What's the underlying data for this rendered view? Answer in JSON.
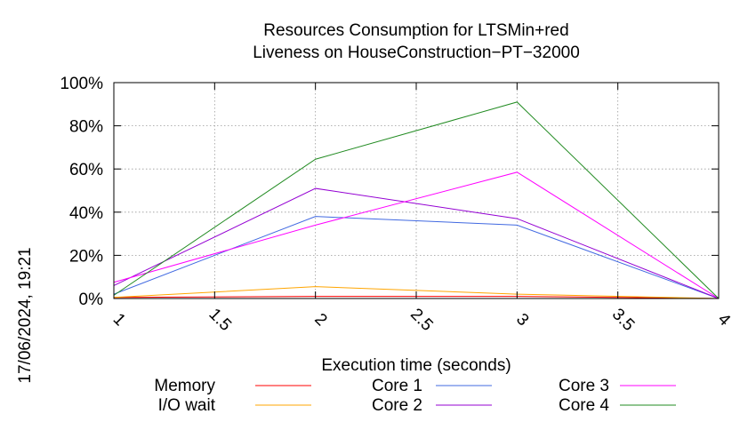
{
  "chart_data": {
    "type": "line",
    "title": [
      "Resources Consumption for LTSMin+red",
      "Liveness on HouseConstruction−PT−32000"
    ],
    "xlabel": "Execution time (seconds)",
    "ylabel": "",
    "x": [
      1,
      2,
      3,
      4
    ],
    "xlim": [
      1,
      4
    ],
    "ylim": [
      0,
      100
    ],
    "x_ticks": [
      "1",
      "1.5",
      "2",
      "2.5",
      "3",
      "3.5",
      "4"
    ],
    "y_ticks": [
      "0%",
      "20%",
      "40%",
      "60%",
      "80%",
      "100%"
    ],
    "grid": true,
    "legend_position": "bottom",
    "series": [
      {
        "name": "Memory",
        "color": "#ff0000",
        "values": [
          0.5,
          1.0,
          1.0,
          0.0
        ]
      },
      {
        "name": "I/O wait",
        "color": "#ffa500",
        "values": [
          0.5,
          5.5,
          2.0,
          0.0
        ]
      },
      {
        "name": "Core 1",
        "color": "#4169e1",
        "values": [
          2.0,
          38.0,
          34.0,
          0.0
        ]
      },
      {
        "name": "Core 2",
        "color": "#9400d3",
        "values": [
          6.0,
          51.0,
          37.0,
          0.0
        ]
      },
      {
        "name": "Core 3",
        "color": "#ff00ff",
        "values": [
          7.5,
          34.0,
          58.5,
          0.0
        ]
      },
      {
        "name": "Core 4",
        "color": "#228b22",
        "values": [
          1.5,
          64.5,
          91.0,
          0.0
        ]
      }
    ]
  },
  "timestamp": "17/06/2024, 19:21"
}
